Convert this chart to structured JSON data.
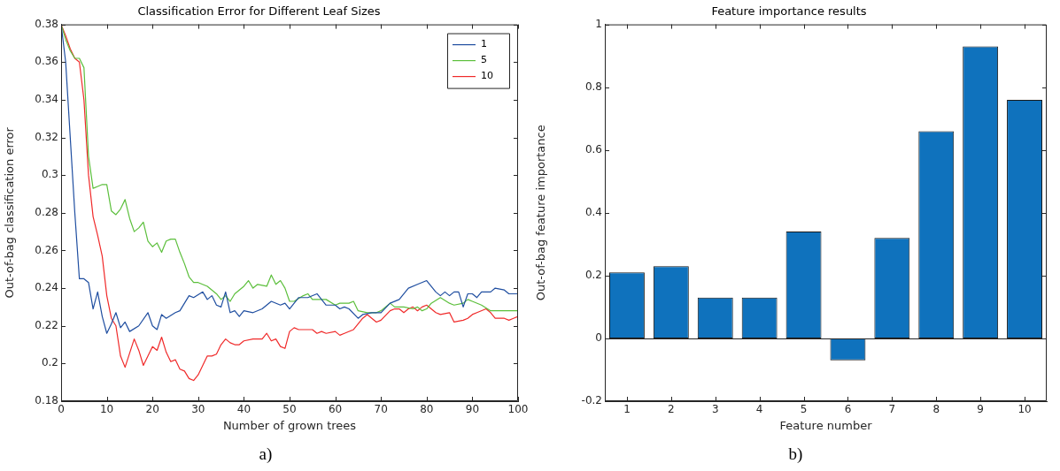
{
  "chart_data": [
    {
      "type": "line",
      "title": "Classification Error for Different Leaf Sizes",
      "xlabel": "Number of grown trees",
      "ylabel": "Out-of-bag classification error",
      "xlim": [
        0,
        100
      ],
      "xticks": [
        0,
        10,
        20,
        30,
        40,
        50,
        60,
        70,
        80,
        90,
        100
      ],
      "ylim": [
        0.18,
        0.38
      ],
      "yticks": [
        0.18,
        0.2,
        0.22,
        0.24,
        0.26,
        0.28,
        0.3,
        0.32,
        0.34,
        0.36,
        0.38
      ],
      "legend": "top right",
      "annotations": [
        "a)"
      ],
      "series": [
        {
          "name": "1",
          "color": "#1f4ea0",
          "x": [
            0,
            1,
            2,
            3,
            4,
            5,
            6,
            7,
            8,
            9,
            10,
            11,
            12,
            13,
            14,
            15,
            17,
            19,
            20,
            21,
            22,
            23,
            25,
            26,
            28,
            29,
            31,
            32,
            33,
            34,
            35,
            36,
            37,
            38,
            39,
            40,
            42,
            44,
            46,
            48,
            49,
            50,
            52,
            54,
            56,
            58,
            60,
            61,
            62,
            63,
            65,
            66,
            68,
            70,
            72,
            74,
            76,
            78,
            80,
            82,
            83,
            84,
            85,
            86,
            87,
            88,
            89,
            90,
            91,
            92,
            94,
            95,
            97,
            98,
            100
          ],
          "values": [
            0.38,
            0.36,
            0.32,
            0.28,
            0.245,
            0.245,
            0.243,
            0.229,
            0.238,
            0.225,
            0.216,
            0.221,
            0.227,
            0.219,
            0.222,
            0.217,
            0.22,
            0.227,
            0.22,
            0.218,
            0.226,
            0.224,
            0.227,
            0.228,
            0.236,
            0.235,
            0.238,
            0.234,
            0.236,
            0.231,
            0.23,
            0.238,
            0.227,
            0.228,
            0.225,
            0.228,
            0.227,
            0.229,
            0.233,
            0.231,
            0.232,
            0.229,
            0.235,
            0.235,
            0.237,
            0.231,
            0.231,
            0.229,
            0.23,
            0.229,
            0.224,
            0.226,
            0.227,
            0.227,
            0.232,
            0.234,
            0.24,
            0.242,
            0.244,
            0.238,
            0.236,
            0.238,
            0.236,
            0.238,
            0.238,
            0.23,
            0.237,
            0.237,
            0.235,
            0.238,
            0.238,
            0.24,
            0.239,
            0.237,
            0.237
          ]
        },
        {
          "name": "5",
          "color": "#5cbf3c",
          "x": [
            0,
            1,
            2,
            3,
            4,
            5,
            6,
            7,
            8,
            9,
            10,
            11,
            12,
            13,
            14,
            15,
            16,
            17,
            18,
            19,
            20,
            21,
            22,
            23,
            24,
            25,
            26,
            27,
            28,
            29,
            30,
            32,
            34,
            35,
            36,
            37,
            38,
            40,
            41,
            42,
            43,
            45,
            46,
            47,
            48,
            49,
            50,
            51,
            53,
            54,
            55,
            58,
            60,
            61,
            63,
            64,
            65,
            67,
            69,
            70,
            72,
            73,
            75,
            77,
            78,
            79,
            80,
            81,
            83,
            85,
            86,
            88,
            89,
            90,
            92,
            94,
            97,
            100
          ],
          "values": [
            0.38,
            0.372,
            0.366,
            0.362,
            0.362,
            0.357,
            0.31,
            0.293,
            0.294,
            0.295,
            0.295,
            0.281,
            0.279,
            0.282,
            0.287,
            0.277,
            0.27,
            0.272,
            0.275,
            0.265,
            0.262,
            0.264,
            0.259,
            0.265,
            0.266,
            0.266,
            0.259,
            0.253,
            0.246,
            0.243,
            0.243,
            0.241,
            0.237,
            0.234,
            0.236,
            0.233,
            0.237,
            0.241,
            0.244,
            0.24,
            0.242,
            0.241,
            0.247,
            0.242,
            0.244,
            0.24,
            0.233,
            0.233,
            0.236,
            0.237,
            0.234,
            0.234,
            0.231,
            0.232,
            0.232,
            0.233,
            0.228,
            0.227,
            0.227,
            0.228,
            0.232,
            0.23,
            0.23,
            0.229,
            0.23,
            0.228,
            0.229,
            0.232,
            0.235,
            0.232,
            0.231,
            0.232,
            0.234,
            0.233,
            0.231,
            0.228,
            0.228,
            0.228
          ]
        },
        {
          "name": "10",
          "color": "#f02a2a",
          "x": [
            0,
            1,
            2,
            3,
            4,
            5,
            6,
            7,
            8,
            9,
            10,
            11,
            12,
            13,
            14,
            16,
            17,
            18,
            20,
            21,
            22,
            23,
            24,
            25,
            26,
            27,
            28,
            29,
            30,
            31,
            32,
            33,
            34,
            35,
            36,
            37,
            38,
            39,
            40,
            42,
            44,
            45,
            46,
            47,
            48,
            49,
            50,
            51,
            52,
            55,
            56,
            57,
            58,
            60,
            61,
            62,
            64,
            66,
            67,
            69,
            70,
            72,
            73,
            74,
            75,
            76,
            77,
            78,
            79,
            80,
            82,
            83,
            85,
            86,
            88,
            89,
            90,
            91,
            93,
            94,
            95,
            97,
            98,
            99,
            100
          ],
          "values": [
            0.38,
            0.374,
            0.367,
            0.362,
            0.36,
            0.34,
            0.3,
            0.278,
            0.268,
            0.257,
            0.236,
            0.224,
            0.22,
            0.204,
            0.198,
            0.213,
            0.207,
            0.199,
            0.209,
            0.207,
            0.214,
            0.206,
            0.201,
            0.202,
            0.197,
            0.196,
            0.192,
            0.191,
            0.194,
            0.199,
            0.204,
            0.204,
            0.205,
            0.21,
            0.213,
            0.211,
            0.21,
            0.21,
            0.212,
            0.213,
            0.213,
            0.216,
            0.212,
            0.213,
            0.209,
            0.208,
            0.217,
            0.219,
            0.218,
            0.218,
            0.216,
            0.217,
            0.216,
            0.217,
            0.215,
            0.216,
            0.218,
            0.224,
            0.226,
            0.222,
            0.223,
            0.228,
            0.229,
            0.229,
            0.227,
            0.229,
            0.23,
            0.228,
            0.23,
            0.231,
            0.227,
            0.226,
            0.227,
            0.222,
            0.223,
            0.224,
            0.226,
            0.227,
            0.229,
            0.227,
            0.224,
            0.224,
            0.223,
            0.224,
            0.225
          ]
        }
      ]
    },
    {
      "type": "bar",
      "title": "Feature importance results",
      "xlabel": "Feature number",
      "ylabel": "Out-of-bag feature importance",
      "categories": [
        "1",
        "2",
        "3",
        "4",
        "5",
        "6",
        "7",
        "8",
        "9",
        "10"
      ],
      "values": [
        0.21,
        0.23,
        0.13,
        0.13,
        0.34,
        -0.07,
        0.32,
        0.66,
        0.93,
        0.76
      ],
      "color": "#0f72bd",
      "ylim": [
        -0.2,
        1
      ],
      "yticks": [
        -0.2,
        0,
        0.2,
        0.4,
        0.6,
        0.8,
        1
      ],
      "annotations": [
        "b)"
      ]
    }
  ]
}
